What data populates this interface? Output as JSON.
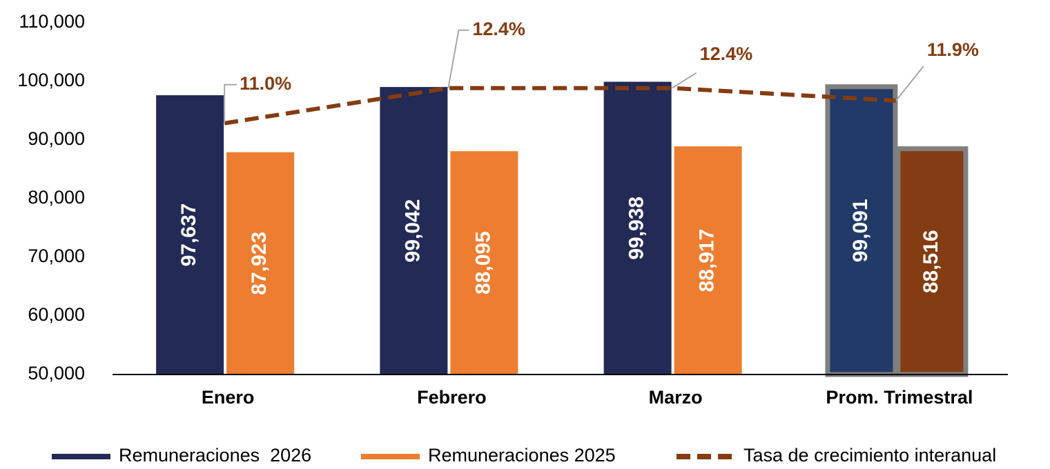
{
  "chart_data": {
    "type": "bar",
    "categories": [
      "Enero",
      "Febrero",
      "Marzo",
      "Prom. Trimestral"
    ],
    "series": [
      {
        "name": "Remuneraciones  2026",
        "color": "#222a55",
        "colors": [
          "#222a55",
          "#222a55",
          "#222a55",
          "#213a68"
        ],
        "edgecolors": [
          null,
          null,
          null,
          "#7f7f7f"
        ],
        "values": [
          97637,
          99042,
          99938,
          99091
        ],
        "value_labels": [
          "97,637",
          "99,042",
          "99,938",
          "99,091"
        ]
      },
      {
        "name": "Remuneraciones 2025",
        "color": "#ed7d31",
        "colors": [
          "#ed7d31",
          "#ed7d31",
          "#ed7d31",
          "#843c12"
        ],
        "edgecolors": [
          null,
          null,
          null,
          "#7f7f7f"
        ],
        "values": [
          87923,
          88095,
          88917,
          88516
        ],
        "value_labels": [
          "87,923",
          "88,095",
          "88,917",
          "88,516"
        ]
      },
      {
        "name": "Tasa de crecimiento interanual",
        "type": "line",
        "axis": "y2",
        "color": "#843c12",
        "dashed": true,
        "values": [
          11.0,
          12.4,
          12.4,
          11.9
        ],
        "value_labels": [
          "11.0%",
          "12.4%",
          "12.4%",
          "11.9%"
        ]
      }
    ],
    "ylim": [
      50000,
      110000
    ],
    "yticks": [
      {
        "value": 50000,
        "label": "50,000"
      },
      {
        "value": 60000,
        "label": "60,000"
      },
      {
        "value": 70000,
        "label": "70,000"
      },
      {
        "value": 80000,
        "label": "80,000"
      },
      {
        "value": 90000,
        "label": "90,000"
      },
      {
        "value": 100000,
        "label": "100,000"
      },
      {
        "value": 110000,
        "label": "110,000"
      }
    ],
    "y2lim": [
      1,
      15
    ],
    "grid": false,
    "legend": "bottom"
  }
}
